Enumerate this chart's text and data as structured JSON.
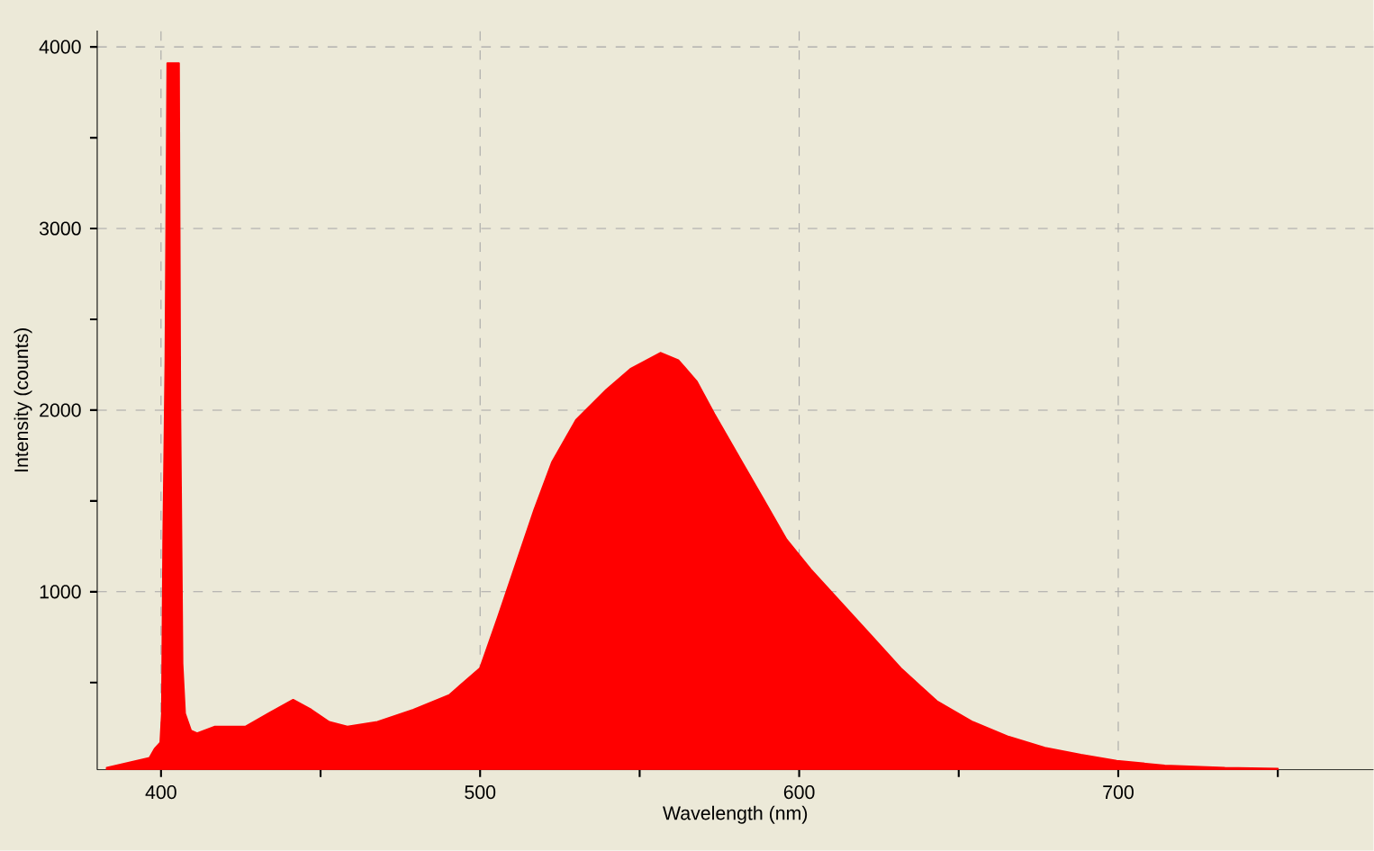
{
  "chart_data": {
    "type": "area",
    "xlabel": "Wavelength (nm)",
    "ylabel": "Intensity (counts)",
    "xlim": [
      380,
      780
    ],
    "ylim": [
      20,
      4090
    ],
    "xticks": [
      400,
      {
        "value": 450,
        "label": null
      },
      500,
      {
        "value": 550,
        "label": null
      },
      600,
      {
        "value": 650,
        "label": null
      },
      700,
      {
        "value": 750,
        "label": null
      }
    ],
    "yticks": [
      {
        "value": 500,
        "label": null
      },
      1000,
      {
        "value": 1500,
        "label": null
      },
      2000,
      {
        "value": 2500,
        "label": null
      },
      3000,
      {
        "value": 3500,
        "label": null
      },
      4000
    ],
    "grid": true,
    "line_style": "dashed",
    "series": [
      {
        "color": "#ff0000",
        "x": [
          383,
          396.4,
          398,
          399.8,
          400.3,
          400.7,
          401.4,
          402,
          405.6,
          406,
          406.7,
          407.5,
          409.4,
          411.3,
          416.9,
          426.4,
          433.9,
          441.4,
          447.1,
          452.7,
          458.4,
          467.8,
          479.1,
          490.3,
          500,
          505.6,
          511.3,
          517,
          522.6,
          530.1,
          539.5,
          547.1,
          556.5,
          562.1,
          567.8,
          573.4,
          580.9,
          588.5,
          596,
          603.6,
          613,
          622.4,
          631.8,
          643.1,
          654.4,
          665.7,
          677,
          688.3,
          699.5,
          714.6,
          733.4,
          750
        ],
        "values": [
          30,
          85,
          135,
          170,
          330,
          1260,
          2275,
          3910,
          3910,
          2045,
          605,
          330,
          235,
          220,
          257,
          257,
          332,
          405,
          350,
          283,
          257,
          283,
          350,
          431,
          579,
          860,
          1156,
          1452,
          1715,
          1946,
          2111,
          2226,
          2315,
          2275,
          2160,
          1979,
          1749,
          1518,
          1288,
          1123,
          942,
          761,
          579,
          398,
          283,
          201,
          141,
          102,
          69,
          43,
          30,
          25
        ]
      }
    ]
  }
}
